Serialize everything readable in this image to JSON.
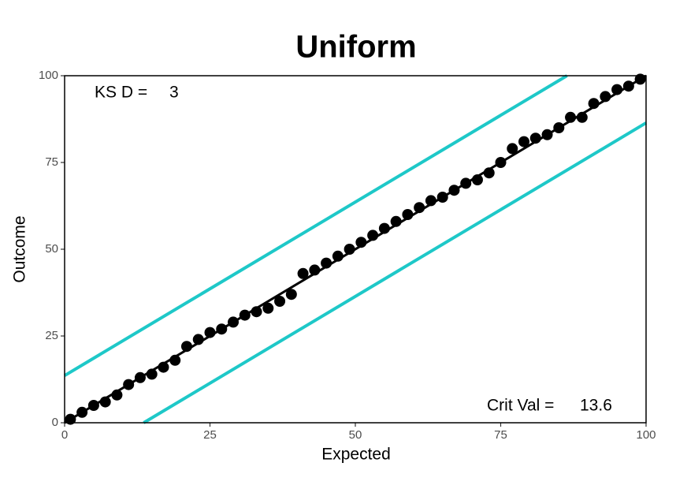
{
  "chart_data": {
    "type": "scatter",
    "title": "Uniform",
    "x_label": "Expected",
    "y_label": "Outcome",
    "ks_label": "KS D =",
    "ks_d": 3,
    "crit_label": "Crit Val =",
    "crit_val": 13.6,
    "x": [
      1,
      3,
      5,
      7,
      9,
      11,
      13,
      15,
      17,
      19,
      21,
      23,
      25,
      27,
      29,
      31,
      33,
      35,
      37,
      39,
      41,
      43,
      45,
      47,
      49,
      51,
      53,
      55,
      57,
      59,
      61,
      63,
      65,
      67,
      69,
      71,
      73,
      75,
      77,
      79,
      81,
      83,
      85,
      87,
      89,
      91,
      93,
      95,
      97,
      99
    ],
    "values": [
      1,
      3,
      5,
      6,
      8,
      11,
      13,
      14,
      16,
      18,
      22,
      24,
      26,
      27,
      29,
      31,
      32,
      33,
      35,
      37,
      43,
      44,
      46,
      48,
      50,
      52,
      54,
      56,
      58,
      60,
      62,
      64,
      65,
      67,
      69,
      70,
      72,
      75,
      79,
      81,
      82,
      83,
      85,
      88,
      88,
      92,
      94,
      96,
      97,
      99
    ],
    "color": "#000000",
    "band_color": "#1ec8c8",
    "xlim": [
      0,
      100
    ],
    "ylim": [
      0,
      100
    ],
    "xticks": [
      0,
      25,
      50,
      75,
      100
    ],
    "yticks": [
      0,
      25,
      50,
      75,
      100
    ]
  }
}
